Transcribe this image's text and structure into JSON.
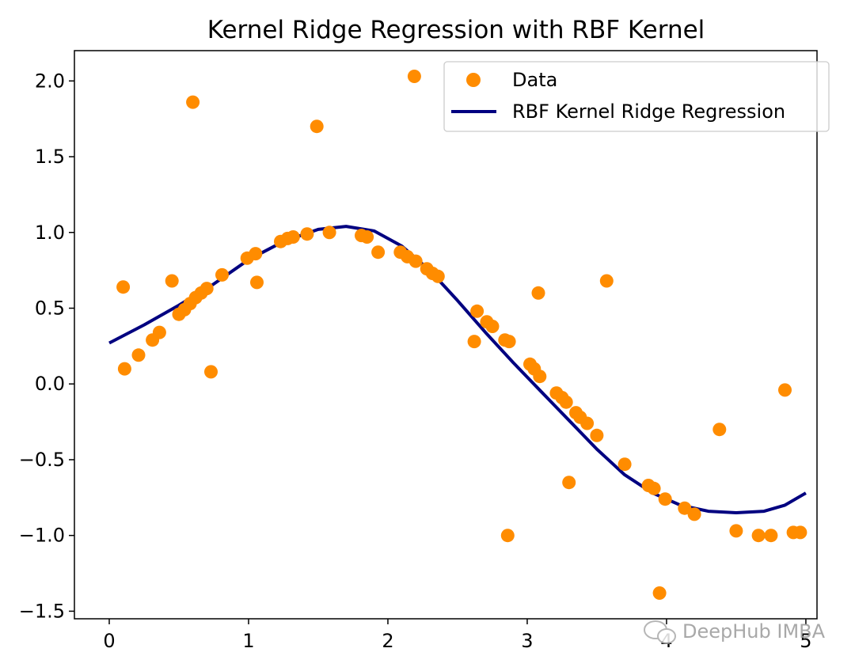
{
  "chart_data": {
    "type": "scatter",
    "title": "Kernel Ridge Regression with RBF Kernel",
    "xlabel": "",
    "ylabel": "",
    "xlim": [
      -0.25,
      5.08
    ],
    "ylim": [
      -1.55,
      2.2
    ],
    "xticks": [
      0,
      1,
      2,
      3,
      4,
      5
    ],
    "xtick_labels": [
      "0",
      "1",
      "2",
      "3",
      "4",
      "5"
    ],
    "yticks": [
      2.0,
      1.5,
      1.0,
      0.5,
      0.0,
      -0.5,
      -1.0,
      -1.5
    ],
    "ytick_labels": [
      "2.0",
      "1.5",
      "1.0",
      "0.5",
      "0.0",
      "−0.5",
      "−1.0",
      "−1.5"
    ],
    "grid": false,
    "legend_position": "top-right",
    "colors": {
      "data": "#ff8c00",
      "curve": "#000080",
      "axes": "#000000"
    },
    "series": [
      {
        "name": "Data",
        "kind": "scatter",
        "points": [
          [
            0.1,
            0.64
          ],
          [
            0.11,
            0.1
          ],
          [
            0.21,
            0.19
          ],
          [
            0.31,
            0.29
          ],
          [
            0.36,
            0.34
          ],
          [
            0.45,
            0.68
          ],
          [
            0.5,
            0.46
          ],
          [
            0.54,
            0.49
          ],
          [
            0.58,
            0.53
          ],
          [
            0.6,
            1.86
          ],
          [
            0.62,
            0.57
          ],
          [
            0.66,
            0.6
          ],
          [
            0.7,
            0.63
          ],
          [
            0.73,
            0.08
          ],
          [
            0.81,
            0.72
          ],
          [
            0.99,
            0.83
          ],
          [
            1.05,
            0.86
          ],
          [
            1.06,
            0.67
          ],
          [
            1.23,
            0.94
          ],
          [
            1.28,
            0.96
          ],
          [
            1.32,
            0.97
          ],
          [
            1.42,
            0.99
          ],
          [
            1.49,
            1.7
          ],
          [
            1.58,
            1.0
          ],
          [
            1.81,
            0.98
          ],
          [
            1.85,
            0.97
          ],
          [
            1.93,
            0.87
          ],
          [
            2.09,
            0.87
          ],
          [
            2.14,
            0.84
          ],
          [
            2.19,
            2.03
          ],
          [
            2.2,
            0.81
          ],
          [
            2.28,
            0.76
          ],
          [
            2.32,
            0.73
          ],
          [
            2.36,
            0.71
          ],
          [
            2.62,
            0.28
          ],
          [
            2.64,
            0.48
          ],
          [
            2.71,
            0.41
          ],
          [
            2.75,
            0.38
          ],
          [
            2.84,
            0.29
          ],
          [
            2.86,
            -1.0
          ],
          [
            2.87,
            0.28
          ],
          [
            3.02,
            0.13
          ],
          [
            3.05,
            0.1
          ],
          [
            3.08,
            0.6
          ],
          [
            3.09,
            0.05
          ],
          [
            3.21,
            -0.06
          ],
          [
            3.25,
            -0.09
          ],
          [
            3.28,
            -0.12
          ],
          [
            3.3,
            -0.65
          ],
          [
            3.35,
            -0.19
          ],
          [
            3.38,
            -0.22
          ],
          [
            3.43,
            -0.26
          ],
          [
            3.5,
            -0.34
          ],
          [
            3.57,
            0.68
          ],
          [
            3.7,
            -0.53
          ],
          [
            3.87,
            -0.67
          ],
          [
            3.91,
            -0.69
          ],
          [
            3.95,
            -1.38
          ],
          [
            3.99,
            -0.76
          ],
          [
            4.13,
            -0.82
          ],
          [
            4.2,
            -0.86
          ],
          [
            4.38,
            -0.3
          ],
          [
            4.5,
            -0.97
          ],
          [
            4.66,
            -1.0
          ],
          [
            4.75,
            -1.0
          ],
          [
            4.85,
            -0.04
          ],
          [
            4.91,
            -0.98
          ],
          [
            4.96,
            -0.98
          ]
        ]
      },
      {
        "name": "RBF Kernel Ridge Regression",
        "kind": "line",
        "points": [
          [
            0.0,
            0.27
          ],
          [
            0.25,
            0.39
          ],
          [
            0.5,
            0.52
          ],
          [
            0.75,
            0.66
          ],
          [
            1.0,
            0.82
          ],
          [
            1.25,
            0.94
          ],
          [
            1.5,
            1.02
          ],
          [
            1.7,
            1.04
          ],
          [
            1.9,
            1.01
          ],
          [
            2.1,
            0.91
          ],
          [
            2.3,
            0.75
          ],
          [
            2.5,
            0.55
          ],
          [
            2.7,
            0.34
          ],
          [
            2.9,
            0.14
          ],
          [
            3.1,
            -0.05
          ],
          [
            3.3,
            -0.24
          ],
          [
            3.5,
            -0.43
          ],
          [
            3.7,
            -0.6
          ],
          [
            3.9,
            -0.72
          ],
          [
            4.1,
            -0.8
          ],
          [
            4.3,
            -0.84
          ],
          [
            4.5,
            -0.85
          ],
          [
            4.7,
            -0.84
          ],
          [
            4.85,
            -0.8
          ],
          [
            5.0,
            -0.72
          ]
        ]
      }
    ]
  },
  "watermark": {
    "icon": "wechat-icon",
    "text": "DeepHub IMBA"
  }
}
